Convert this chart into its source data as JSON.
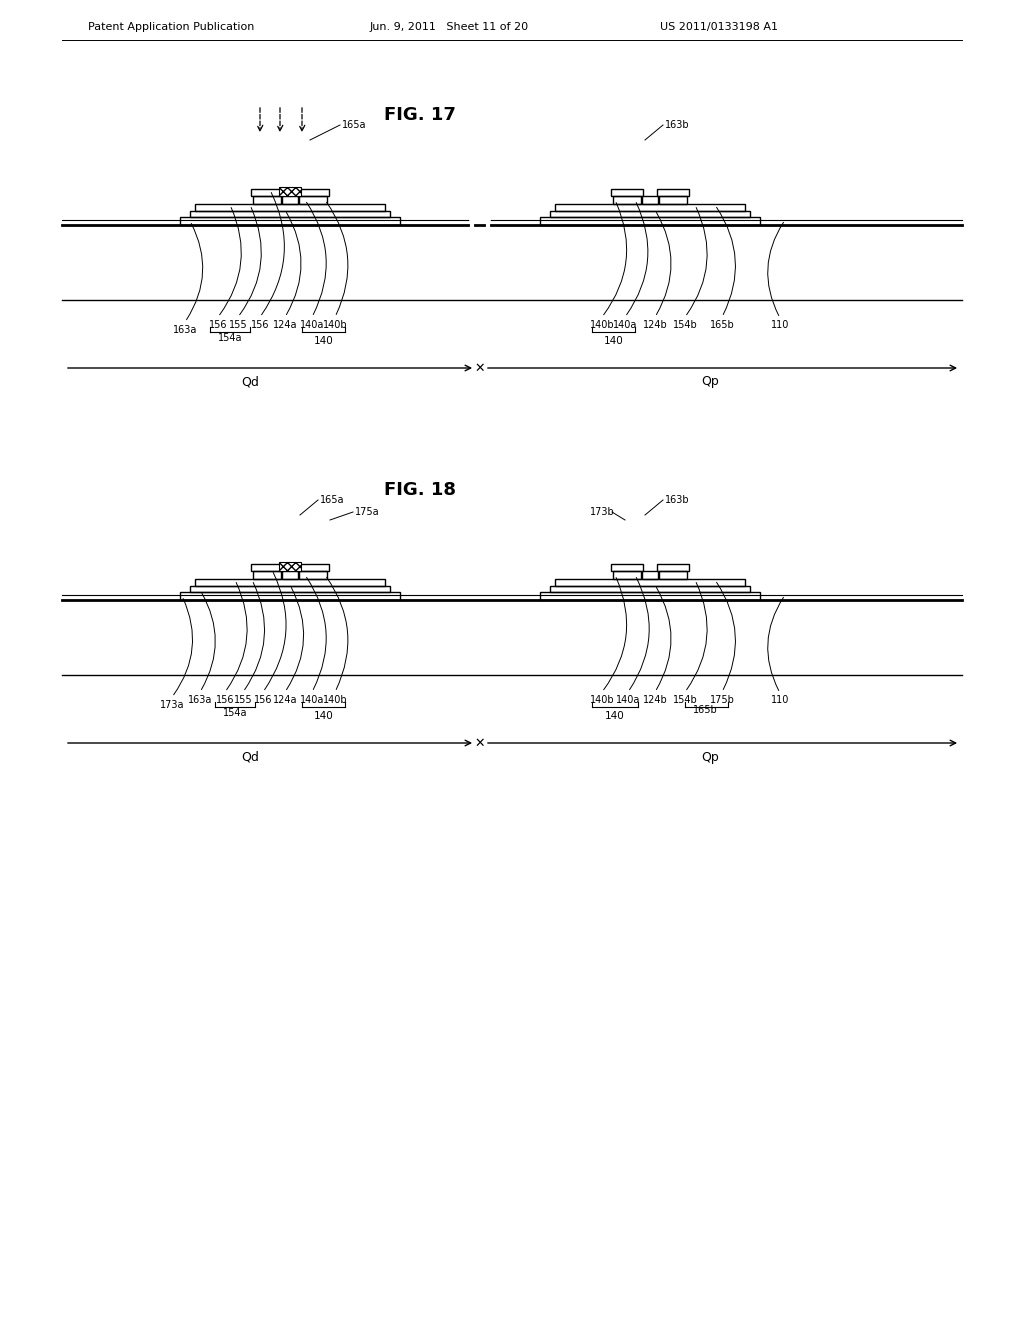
{
  "bg_color": "#ffffff",
  "text_color": "#000000",
  "header_left": "Patent Application Publication",
  "header_mid": "Jun. 9, 2011   Sheet 11 of 20",
  "header_right": "US 2011/0133198 A1",
  "fig17_title": "FIG. 17",
  "fig18_title": "FIG. 18"
}
